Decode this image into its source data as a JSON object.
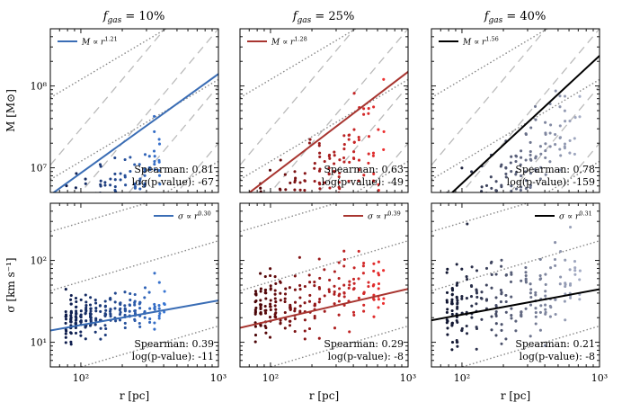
{
  "figure": {
    "column_titles": [
      "f_gas = 10%",
      "f_gas = 25%",
      "f_gas = 40%"
    ],
    "column_title_parts": [
      {
        "symbol": "f",
        "subscript": "gas",
        "value": " = 10%"
      },
      {
        "symbol": "f",
        "subscript": "gas",
        "value": " = 25%"
      },
      {
        "symbol": "f",
        "subscript": "gas",
        "value": " = 40%"
      }
    ],
    "x_axis_label": "r [pc]",
    "top_row_y_label": "M [M⊙]",
    "bottom_row_y_label": "σ [km s⁻¹]",
    "x_tick_labels": [
      "10²",
      "10³"
    ],
    "top_y_tick_labels": [
      "10⁷",
      "10⁸"
    ],
    "bottom_y_tick_labels": [
      "10¹",
      "10²"
    ]
  },
  "chart_data": [
    {
      "type": "scatter",
      "row": "mass",
      "column": 0,
      "title": "f_gas = 10%",
      "xlabel": "r [pc]",
      "ylabel": "M [M⊙]",
      "xscale": "log",
      "yscale": "log",
      "xlim": [
        60,
        1000
      ],
      "ylim": [
        5000000,
        500000000
      ],
      "color_low": "#0d1b4a",
      "color_high": "#3a78d6",
      "fit_color": "#3a6db5",
      "x_range": [
        80,
        420
      ],
      "y_norm": 2000000,
      "slope_draw": 1.21,
      "y_scatter_dex": 0.25,
      "legend_text": "M ∝ r^1.21",
      "legend_prefix": "M ∝ r",
      "legend_exponent": "1.21",
      "fit": {
        "exponent": 1.21,
        "norm": 20000000,
        "pivot": 200,
        "xmin": 60,
        "xmax": 1000
      },
      "spearman_text": "Spearman: 0.81",
      "pvalue_text": "log(p-value): -67",
      "spearman": 0.81,
      "log_p_value": -67
    },
    {
      "type": "scatter",
      "row": "mass",
      "column": 1,
      "title": "f_gas = 25%",
      "xlabel": "r [pc]",
      "ylabel": "M [M⊙]",
      "xscale": "log",
      "yscale": "log",
      "xlim": [
        60,
        1000
      ],
      "ylim": [
        5000000,
        500000000
      ],
      "color_low": "#4a0406",
      "color_high": "#ee3030",
      "fit_color": "#a83530",
      "x_range": [
        80,
        680
      ],
      "y_norm": 2000000,
      "slope_draw": 1.28,
      "y_scatter_dex": 0.28,
      "legend_text": "M ∝ r^1.28",
      "legend_prefix": "M ∝ r",
      "legend_exponent": "1.28",
      "fit": {
        "exponent": 1.28,
        "norm": 19000000,
        "pivot": 200,
        "xmin": 60,
        "xmax": 1000
      },
      "spearman_text": "Spearman: 0.63",
      "pvalue_text": "log(p-value): -49",
      "spearman": 0.63,
      "log_p_value": -49
    },
    {
      "type": "scatter",
      "row": "mass",
      "column": 2,
      "title": "f_gas = 40%",
      "xlabel": "r [pc]",
      "ylabel": "M [M⊙]",
      "xscale": "log",
      "yscale": "log",
      "xlim": [
        60,
        1000
      ],
      "ylim": [
        5000000,
        500000000
      ],
      "color_low": "#101530",
      "color_high": "#a8b0c8",
      "fit_color": "#000000",
      "x_range": [
        80,
        750
      ],
      "y_norm": 2000000,
      "slope_draw": 1.56,
      "y_scatter_dex": 0.25,
      "legend_text": "M ∝ r^1.56",
      "legend_prefix": "M ∝ r",
      "legend_exponent": "1.56",
      "fit": {
        "exponent": 1.56,
        "norm": 19000000,
        "pivot": 200,
        "xmin": 60,
        "xmax": 1000
      },
      "spearman_text": "Spearman: 0.78",
      "pvalue_text": "log(p-value): -159",
      "spearman": 0.78,
      "log_p_value": -159
    },
    {
      "type": "scatter",
      "row": "dispersion",
      "column": 0,
      "title": "f_gas = 10%",
      "xlabel": "r [pc]",
      "ylabel": "σ [km s⁻¹]",
      "xscale": "log",
      "yscale": "log",
      "xlim": [
        60,
        1000
      ],
      "ylim": [
        5,
        500
      ],
      "color_low": "#0d1b4a",
      "color_high": "#3a78d6",
      "fit_color": "#3a6db5",
      "x_range": [
        80,
        420
      ],
      "y_norm": 20,
      "slope_draw": 0.3,
      "y_scatter_dex": 0.13,
      "legend_text": "σ ∝ r^0.30",
      "legend_prefix": "σ ∝ r",
      "legend_exponent": "0.30",
      "fit": {
        "exponent": 0.3,
        "norm": 20,
        "pivot": 200,
        "xmin": 60,
        "xmax": 1000
      },
      "spearman_text": "Spearman: 0.39",
      "pvalue_text": "log(p-value): -11",
      "spearman": 0.39,
      "log_p_value": -11
    },
    {
      "type": "scatter",
      "row": "dispersion",
      "column": 1,
      "title": "f_gas = 25%",
      "xlabel": "r [pc]",
      "ylabel": "σ [km s⁻¹]",
      "xscale": "log",
      "yscale": "log",
      "xlim": [
        60,
        1000
      ],
      "ylim": [
        5,
        500
      ],
      "color_low": "#4a0406",
      "color_high": "#ee3030",
      "fit_color": "#a83530",
      "x_range": [
        80,
        680
      ],
      "y_norm": 25,
      "slope_draw": 0.39,
      "y_scatter_dex": 0.22,
      "legend_text": "σ ∝ r^0.39",
      "legend_prefix": "σ ∝ r",
      "legend_exponent": "0.39",
      "fit": {
        "exponent": 0.39,
        "norm": 24,
        "pivot": 200,
        "xmin": 60,
        "xmax": 1000
      },
      "spearman_text": "Spearman: 0.29",
      "pvalue_text": "log(p-value): -8",
      "spearman": 0.29,
      "log_p_value": -8
    },
    {
      "type": "scatter",
      "row": "dispersion",
      "column": 2,
      "title": "f_gas = 40%",
      "xlabel": "r [pc]",
      "ylabel": "σ [km s⁻¹]",
      "xscale": "log",
      "yscale": "log",
      "xlim": [
        60,
        1000
      ],
      "ylim": [
        5,
        500
      ],
      "color_low": "#101530",
      "color_high": "#a8b0c8",
      "fit_color": "#000000",
      "x_range": [
        80,
        750
      ],
      "y_norm": 27,
      "slope_draw": 0.31,
      "y_scatter_dex": 0.25,
      "legend_text": "σ ∝ r^0.31",
      "legend_prefix": "σ ∝ r",
      "legend_exponent": "0.31",
      "fit": {
        "exponent": 0.31,
        "norm": 27,
        "pivot": 200,
        "xmin": 60,
        "xmax": 1000
      },
      "spearman_text": "Spearman: 0.21",
      "pvalue_text": "log(p-value): -8",
      "spearman": 0.21,
      "log_p_value": -8
    }
  ]
}
